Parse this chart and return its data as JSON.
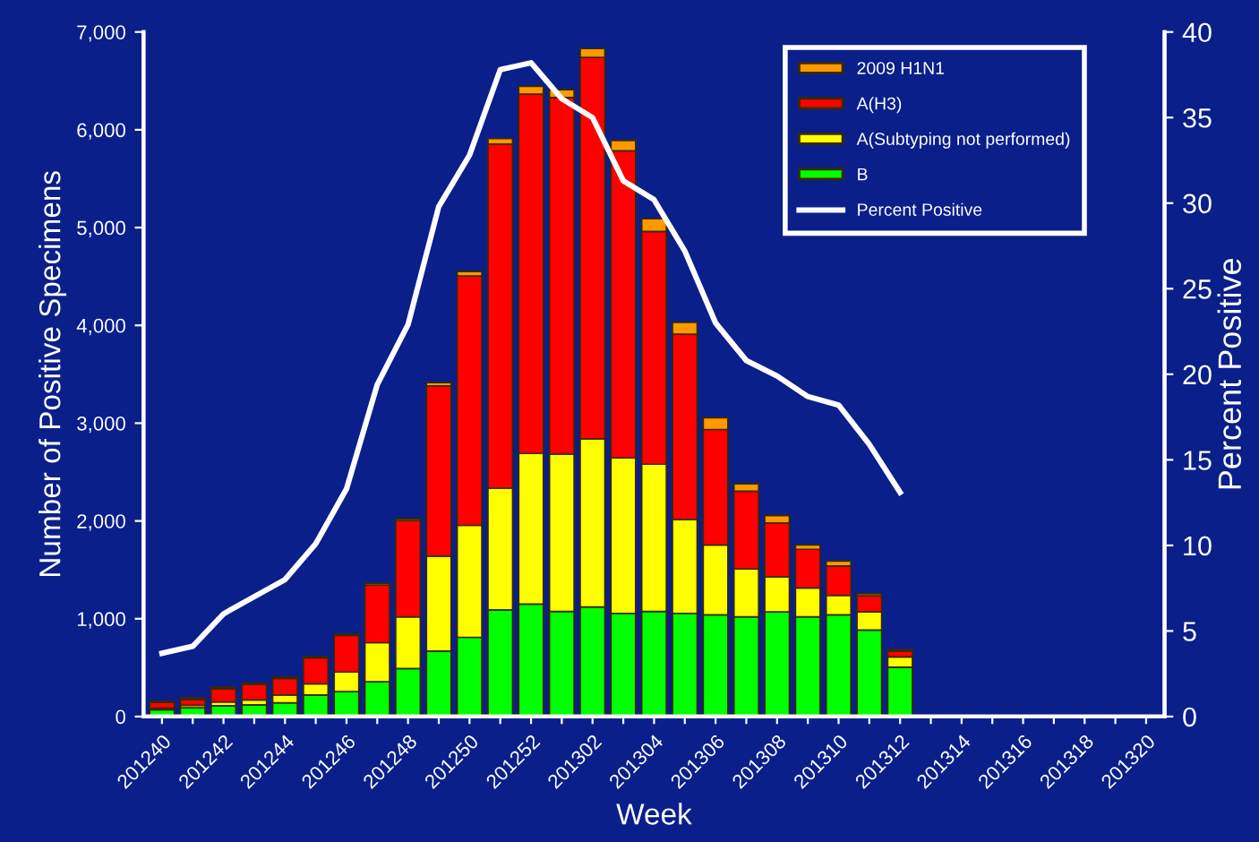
{
  "chart_data": {
    "type": "bar",
    "stacked": true,
    "xlabel": "Week",
    "ylabel": "Number of Positive Specimens",
    "y2label": "Percent Positive",
    "categories": [
      "201240",
      null,
      "201242",
      null,
      "201244",
      null,
      "201246",
      null,
      "201248",
      null,
      "201250",
      null,
      "201252",
      null,
      "201302",
      null,
      "201304",
      null,
      "201306",
      null,
      "201308",
      null,
      "201310",
      null,
      "201312",
      null,
      "201314",
      null,
      "201316",
      null,
      "201318",
      null,
      "201320"
    ],
    "series": [
      {
        "name": "B",
        "color": "#00ff00",
        "values": [
          70,
          90,
          110,
          120,
          140,
          220,
          255,
          355,
          490,
          670,
          810,
          1090,
          1150,
          1075,
          1120,
          1055,
          1075,
          1055,
          1040,
          1020,
          1070,
          1020,
          1040,
          885,
          505,
          null,
          null,
          null,
          null,
          null,
          null,
          null,
          null
        ]
      },
      {
        "name": "A(Subtyping not performed)",
        "color": "#ffff00",
        "values": [
          15,
          25,
          40,
          50,
          80,
          115,
          200,
          400,
          530,
          970,
          1145,
          1245,
          1540,
          1610,
          1720,
          1590,
          1505,
          960,
          715,
          490,
          360,
          295,
          200,
          185,
          105,
          null,
          null,
          null,
          null,
          null,
          null,
          null,
          null
        ]
      },
      {
        "name": "A(H3)",
        "color": "#ff0000",
        "values": [
          60,
          60,
          135,
          160,
          170,
          265,
          375,
          590,
          985,
          1740,
          2550,
          3520,
          3675,
          3645,
          3900,
          3140,
          2380,
          1895,
          1180,
          795,
          550,
          395,
          300,
          165,
          60,
          null,
          null,
          null,
          null,
          null,
          null,
          null,
          null
        ]
      },
      {
        "name": "2009 H1N1",
        "color": "#ff9900",
        "values": [
          10,
          15,
          15,
          10,
          12,
          12,
          12,
          18,
          18,
          35,
          45,
          55,
          80,
          80,
          90,
          105,
          130,
          120,
          120,
          75,
          75,
          45,
          50,
          20,
          15,
          null,
          null,
          null,
          null,
          null,
          null,
          null,
          null
        ]
      },
      {
        "name": "Percent Positive",
        "type": "line",
        "axis": "y2",
        "color": "#ffffff",
        "values": [
          3.7,
          4.1,
          6.0,
          7.0,
          8.0,
          10.1,
          13.3,
          19.4,
          22.9,
          29.8,
          32.8,
          37.8,
          38.2,
          36.1,
          35.0,
          31.3,
          30.2,
          27.2,
          23.0,
          20.8,
          19.9,
          18.7,
          18.2,
          15.9,
          13.1,
          null,
          null,
          null,
          null,
          null,
          null,
          null,
          null
        ]
      }
    ],
    "ylim": [
      0,
      7000
    ],
    "yticks": [
      0,
      {
        "value": 1000,
        "label": "1,000"
      },
      {
        "value": 2000,
        "label": "2,000"
      },
      {
        "value": 3000,
        "label": "3,000"
      },
      {
        "value": 4000,
        "label": "4,000"
      },
      {
        "value": 5000,
        "label": "5,000"
      },
      {
        "value": 6000,
        "label": "6,000"
      },
      {
        "value": 7000,
        "label": "7,000"
      }
    ],
    "y2lim": [
      0,
      40
    ],
    "y2ticks": [
      0,
      5,
      10,
      15,
      20,
      25,
      30,
      35,
      40
    ],
    "legend": "top right",
    "grid": false
  }
}
